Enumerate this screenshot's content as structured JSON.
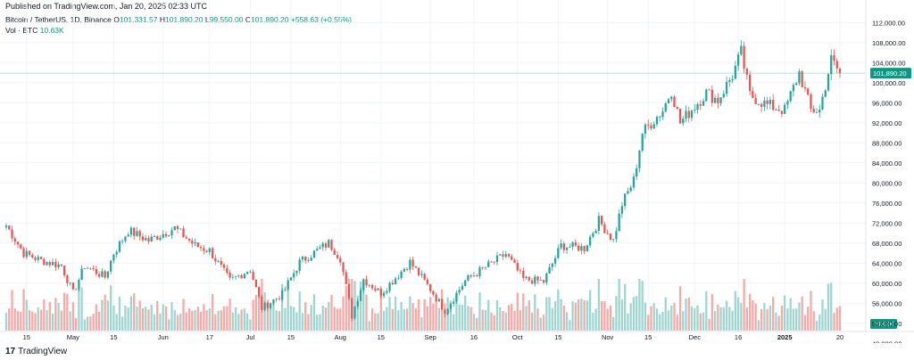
{
  "published": "Published on TradingView.com, Jan 20, 2025 02:33 UTC",
  "legend": {
    "symbol": "Bitcoin / TetherUS, 1D, Binance",
    "o_label": "O",
    "o_value": "101,331.57",
    "h_label": "H",
    "h_value": "101,890.20",
    "l_label": "L",
    "l_value": "99,550.00",
    "c_label": "C",
    "c_value": "101,890.20",
    "change": "+558.63 (+0.55%)",
    "vol_label": "Vol · BTC",
    "vol_value": "10.63K"
  },
  "footer": {
    "brand": "TradingView",
    "logo_mark": "17"
  },
  "colors": {
    "up": "#26a69a",
    "down": "#ef5350",
    "up_vol": "#9ed5cf",
    "down_vol": "#f7a9a7",
    "price_tag": "#089981",
    "grid": "#f0f3fa"
  },
  "chart_data": {
    "type": "candlestick",
    "series_name": "",
    "ylim": [
      50000,
      114000
    ],
    "y_ticks": [
      "112,000.00",
      "108,000.00",
      "104,000.00",
      "100,000.00",
      "96,000.00",
      "92,000.00",
      "88,000.00",
      "84,000.00",
      "80,000.00",
      "76,000.00",
      "72,000.00",
      "68,000.00",
      "64,000.00",
      "60,000.00",
      "56,000.00",
      "52,000.00",
      "48,000.00"
    ],
    "x_ticks": [
      {
        "label": "15",
        "date": "2024-04-15"
      },
      {
        "label": "May",
        "date": "2024-05-01"
      },
      {
        "label": "15",
        "date": "2024-05-15"
      },
      {
        "label": "Jun",
        "date": "2024-06-01"
      },
      {
        "label": "17",
        "date": "2024-06-17"
      },
      {
        "label": "Jul",
        "date": "2024-07-01"
      },
      {
        "label": "15",
        "date": "2024-07-15"
      },
      {
        "label": "Aug",
        "date": "2024-08-01"
      },
      {
        "label": "15",
        "date": "2024-08-15"
      },
      {
        "label": "Sep",
        "date": "2024-09-01"
      },
      {
        "label": "16",
        "date": "2024-09-16"
      },
      {
        "label": "Oct",
        "date": "2024-10-01"
      },
      {
        "label": "15",
        "date": "2024-10-15"
      },
      {
        "label": "Nov",
        "date": "2024-11-01"
      },
      {
        "label": "15",
        "date": "2024-11-15"
      },
      {
        "label": "Dec",
        "date": "2024-12-01"
      },
      {
        "label": "16",
        "date": "2024-12-16"
      },
      {
        "label": "2025",
        "date": "2025-01-01"
      },
      {
        "label": "20",
        "date": "2025-01-20"
      }
    ],
    "first_date": "2024-04-08",
    "last_close_label": "101,890.20",
    "last_close": 101890.2,
    "last_volume_label": "10.63K",
    "close_path": [
      {
        "date": "2024-04-08",
        "value": 71500
      },
      {
        "date": "2024-04-14",
        "value": 66000
      },
      {
        "date": "2024-04-20",
        "value": 64500
      },
      {
        "date": "2024-04-27",
        "value": 63500
      },
      {
        "date": "2024-05-01",
        "value": 58000
      },
      {
        "date": "2024-05-05",
        "value": 63500
      },
      {
        "date": "2024-05-12",
        "value": 61200
      },
      {
        "date": "2024-05-15",
        "value": 66000
      },
      {
        "date": "2024-05-20",
        "value": 70500
      },
      {
        "date": "2024-05-27",
        "value": 68500
      },
      {
        "date": "2024-06-05",
        "value": 71000
      },
      {
        "date": "2024-06-12",
        "value": 67500
      },
      {
        "date": "2024-06-17",
        "value": 66500
      },
      {
        "date": "2024-06-24",
        "value": 60500
      },
      {
        "date": "2024-07-01",
        "value": 62800
      },
      {
        "date": "2024-07-05",
        "value": 55000
      },
      {
        "date": "2024-07-12",
        "value": 57800
      },
      {
        "date": "2024-07-18",
        "value": 64200
      },
      {
        "date": "2024-07-28",
        "value": 68000
      },
      {
        "date": "2024-08-01",
        "value": 65000
      },
      {
        "date": "2024-08-05",
        "value": 53500
      },
      {
        "date": "2024-08-09",
        "value": 60800
      },
      {
        "date": "2024-08-15",
        "value": 58000
      },
      {
        "date": "2024-08-25",
        "value": 64200
      },
      {
        "date": "2024-09-01",
        "value": 58800
      },
      {
        "date": "2024-09-06",
        "value": 54500
      },
      {
        "date": "2024-09-13",
        "value": 60500
      },
      {
        "date": "2024-09-20",
        "value": 63200
      },
      {
        "date": "2024-09-27",
        "value": 65800
      },
      {
        "date": "2024-10-03",
        "value": 60800
      },
      {
        "date": "2024-10-10",
        "value": 60300
      },
      {
        "date": "2024-10-16",
        "value": 67500
      },
      {
        "date": "2024-10-24",
        "value": 67000
      },
      {
        "date": "2024-10-29",
        "value": 72500
      },
      {
        "date": "2024-11-03",
        "value": 68500
      },
      {
        "date": "2024-11-06",
        "value": 75800
      },
      {
        "date": "2024-11-10",
        "value": 80500
      },
      {
        "date": "2024-11-13",
        "value": 90000
      },
      {
        "date": "2024-11-20",
        "value": 94500
      },
      {
        "date": "2024-11-23",
        "value": 98500
      },
      {
        "date": "2024-11-26",
        "value": 92000
      },
      {
        "date": "2024-12-05",
        "value": 98000
      },
      {
        "date": "2024-12-09",
        "value": 96500
      },
      {
        "date": "2024-12-14",
        "value": 101500
      },
      {
        "date": "2024-12-17",
        "value": 106000
      },
      {
        "date": "2024-12-20",
        "value": 97500
      },
      {
        "date": "2024-12-26",
        "value": 95500
      },
      {
        "date": "2025-01-01",
        "value": 94500
      },
      {
        "date": "2025-01-06",
        "value": 102000
      },
      {
        "date": "2025-01-10",
        "value": 94500
      },
      {
        "date": "2025-01-13",
        "value": 94500
      },
      {
        "date": "2025-01-17",
        "value": 104500
      },
      {
        "date": "2025-01-20",
        "value": 101890
      }
    ]
  }
}
